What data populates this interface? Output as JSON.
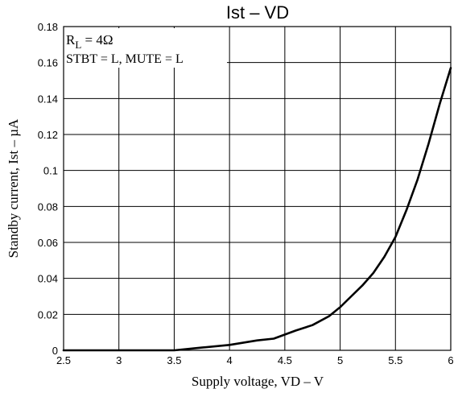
{
  "chart_data": {
    "type": "line",
    "title": "Ist  –  VD",
    "xlabel": "Supply voltage, VD  –  V",
    "ylabel": "Standby current, Ist  –  µA",
    "xlim": [
      2.5,
      6
    ],
    "ylim": [
      0,
      0.18
    ],
    "x_ticks": [
      2.5,
      3,
      3.5,
      4,
      4.5,
      5,
      5.5,
      6
    ],
    "x_tick_labels": [
      "2.5",
      "3",
      "3.5",
      "4",
      "4.5",
      "5",
      "5.5",
      "6"
    ],
    "y_ticks": [
      0,
      0.02,
      0.04,
      0.06,
      0.08,
      0.1,
      0.12,
      0.14,
      0.16,
      0.18
    ],
    "y_tick_labels": [
      "0",
      "0.02",
      "0.04",
      "0.06",
      "0.08",
      "0.1",
      "0.12",
      "0.14",
      "0.16",
      "0.18"
    ],
    "grid": true,
    "annotations": {
      "line1_main": "R",
      "line1_sub": "L",
      "line1_rest": " = 4Ω",
      "line2": "STBT = L, MUTE = L"
    },
    "series": [
      {
        "x": [
          2.5,
          3.0,
          3.5,
          3.75,
          4.0,
          4.25,
          4.4,
          4.6,
          4.75,
          4.9,
          5.0,
          5.1,
          5.2,
          5.3,
          5.4,
          5.5,
          5.6,
          5.7,
          5.8,
          5.9,
          6.0
        ],
        "y": [
          0,
          0,
          0,
          0.0015,
          0.003,
          0.0055,
          0.0065,
          0.011,
          0.014,
          0.019,
          0.024,
          0.03,
          0.036,
          0.043,
          0.052,
          0.063,
          0.078,
          0.095,
          0.115,
          0.137,
          0.157
        ]
      }
    ]
  }
}
